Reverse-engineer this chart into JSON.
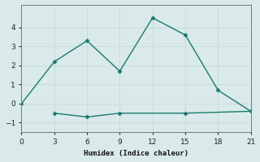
{
  "xlabel": "Humidex (Indice chaleur)",
  "line1_x": [
    0,
    3,
    6,
    9,
    12,
    15,
    18,
    21
  ],
  "line1_y": [
    0.0,
    2.2,
    3.3,
    1.7,
    4.5,
    3.6,
    0.7,
    -0.4
  ],
  "line2_x": [
    3,
    6,
    9,
    15,
    21
  ],
  "line2_y": [
    -0.5,
    -0.7,
    -0.5,
    -0.5,
    -0.4
  ],
  "line_color": "#1a7a6e",
  "marker": "D",
  "marker_size": 2.5,
  "bg_color": "#daeaea",
  "grid_color": "#c8dede",
  "xlim": [
    0,
    21
  ],
  "ylim": [
    -1.5,
    5.2
  ],
  "xticks": [
    0,
    3,
    6,
    9,
    12,
    15,
    18,
    21
  ],
  "yticks": [
    -1,
    0,
    1,
    2,
    3,
    4
  ]
}
